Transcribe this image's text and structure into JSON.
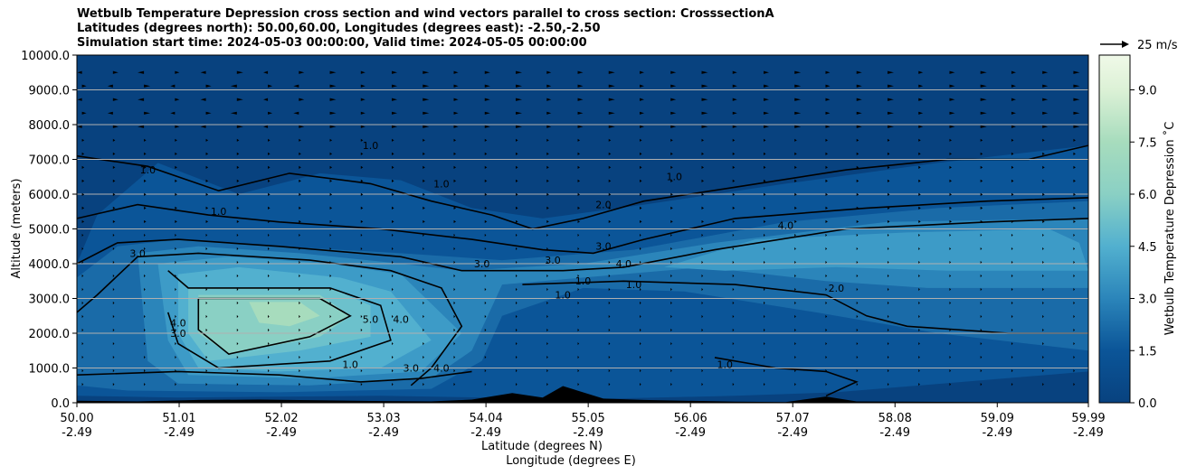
{
  "chart_data": {
    "type": "contour",
    "title_lines": [
      "Wetbulb Temperature Depression cross section and wind vectors parallel to cross section: CrosssectionA",
      "Latitudes (degrees north): 50.00,60.00, Longitudes (degrees east): -2.50,-2.50",
      "Simulation start time: 2024-05-03 00:00:00, Valid time: 2024-05-05 00:00:00"
    ],
    "ylabel": "Altitude (meters)",
    "xlabel_lat": "Latitude (degrees N)",
    "xlabel_lon": "Longitude (degrees E)",
    "ylim": [
      0,
      10000
    ],
    "yticks": [
      "0.0",
      "1000.0",
      "2000.0",
      "3000.0",
      "4000.0",
      "5000.0",
      "6000.0",
      "7000.0",
      "8000.0",
      "9000.0",
      "10000.0"
    ],
    "ytick_values": [
      0,
      1000,
      2000,
      3000,
      4000,
      5000,
      6000,
      7000,
      8000,
      9000,
      10000
    ],
    "xlim": [
      50.0,
      59.99
    ],
    "xticks": [
      {
        "lat": "50.00",
        "lon": "-2.49",
        "v": 50.0
      },
      {
        "lat": "51.01",
        "lon": "-2.49",
        "v": 51.01
      },
      {
        "lat": "52.02",
        "lon": "-2.49",
        "v": 52.02
      },
      {
        "lat": "53.03",
        "lon": "-2.49",
        "v": 53.03
      },
      {
        "lat": "54.04",
        "lon": "-2.49",
        "v": 54.04
      },
      {
        "lat": "55.05",
        "lon": "-2.49",
        "v": 55.05
      },
      {
        "lat": "56.06",
        "lon": "-2.49",
        "v": 56.06
      },
      {
        "lat": "57.07",
        "lon": "-2.49",
        "v": 57.07
      },
      {
        "lat": "58.08",
        "lon": "-2.49",
        "v": 58.08
      },
      {
        "lat": "59.09",
        "lon": "-2.49",
        "v": 59.09
      },
      {
        "lat": "59.99",
        "lon": "-2.49",
        "v": 59.99
      }
    ],
    "grid": "horizontal",
    "colorbar": {
      "label": "Wetbulb Temperature Depression ˚C",
      "range": [
        0,
        10
      ],
      "ticks": [
        "0.0",
        "1.5",
        "3.0",
        "4.5",
        "6.0",
        "7.5",
        "9.0"
      ],
      "tick_values": [
        0,
        1.5,
        3.0,
        4.5,
        6.0,
        7.5,
        9.0
      ],
      "colors_low_to_high": [
        "#08427f",
        "#0b5598",
        "#1a6ba8",
        "#2b85ba",
        "#3d9bc7",
        "#52b0cf",
        "#6cc1cc",
        "#8ad0c4",
        "#a7dcbd",
        "#c2e7c0",
        "#dcf1d6",
        "#f0f9e8"
      ]
    },
    "quiver_key": {
      "label": "25 m/s",
      "speed": 25
    },
    "contour_labels": [
      {
        "t": "1.0",
        "lat": 51.4,
        "alt": 5400
      },
      {
        "t": "1.0",
        "lat": 52.9,
        "alt": 7300
      },
      {
        "t": "1.0",
        "lat": 53.6,
        "alt": 6200
      },
      {
        "t": "1.0",
        "lat": 50.7,
        "alt": 6600
      },
      {
        "t": "1.0",
        "lat": 55.9,
        "alt": 6400
      },
      {
        "t": "1.0",
        "lat": 55.0,
        "alt": 3400
      },
      {
        "t": "1.0",
        "lat": 54.8,
        "alt": 3000
      },
      {
        "t": "1.0",
        "lat": 55.5,
        "alt": 3300
      },
      {
        "t": "1.0",
        "lat": 56.4,
        "alt": 1000
      },
      {
        "t": "2.0",
        "lat": 55.2,
        "alt": 5600
      },
      {
        "t": "2.0",
        "lat": 57.5,
        "alt": 3200
      },
      {
        "t": "3.0",
        "lat": 50.6,
        "alt": 4200
      },
      {
        "t": "3.0",
        "lat": 54.0,
        "alt": 3900
      },
      {
        "t": "3.0",
        "lat": 55.2,
        "alt": 4400
      },
      {
        "t": "3.0",
        "lat": 54.7,
        "alt": 4000
      },
      {
        "t": "3.0",
        "lat": 51.0,
        "alt": 1900
      },
      {
        "t": "4.0",
        "lat": 51.0,
        "alt": 2200
      },
      {
        "t": "4.0",
        "lat": 53.2,
        "alt": 2300
      },
      {
        "t": "4.0",
        "lat": 53.6,
        "alt": 900
      },
      {
        "t": "4.0",
        "lat": 57.0,
        "alt": 5000
      },
      {
        "t": "4.0",
        "lat": 55.4,
        "alt": 3900
      },
      {
        "t": "5.0",
        "lat": 52.9,
        "alt": 2300
      },
      {
        "t": "1.0",
        "lat": 52.7,
        "alt": 1000
      },
      {
        "t": "3.0",
        "lat": 53.3,
        "alt": 900
      }
    ]
  }
}
